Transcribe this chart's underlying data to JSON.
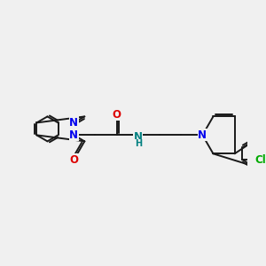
{
  "bg_color": "#f0f0f0",
  "bond_color": "#1a1a1a",
  "N_color": "#0000ee",
  "O_color": "#dd0000",
  "Cl_color": "#00aa00",
  "NH_color": "#008080",
  "line_width": 1.4,
  "font_size": 8.5,
  "figsize": [
    3.0,
    3.0
  ],
  "dpi": 100,
  "xlim": [
    0,
    12
  ],
  "ylim": [
    0,
    12
  ]
}
